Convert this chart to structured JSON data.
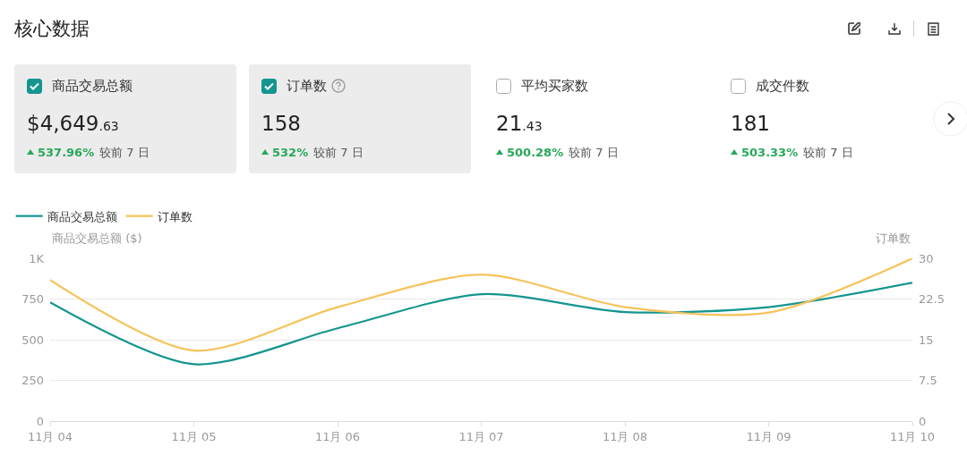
{
  "chart_data": {
    "type": "line",
    "title": "核心数据",
    "annotations": [
      "商品交易总额",
      "$4,649.63",
      "537.96%",
      "较前 7 日",
      "订单数",
      "158",
      "532%",
      "较前 7 日",
      "平均买家数",
      "21.43",
      "500.28%",
      "较前 7 日",
      "成交件数",
      "181",
      "503.33%",
      "较前 7 日"
    ],
    "categories": [
      "11月 04",
      "11月 05",
      "11月 06",
      "11月 07",
      "11月 08",
      "11月 09",
      "11月 10"
    ],
    "series": [
      {
        "name": "商品交易总额",
        "color": "#14958f",
        "values": [
          730,
          350,
          570,
          780,
          670,
          700,
          850
        ]
      },
      {
        "name": "订单数",
        "color": "#f6c35a",
        "axis": "y2",
        "values": [
          26,
          13,
          21,
          27,
          21,
          20,
          30
        ]
      }
    ],
    "ylabel": "商品交易总额 ($)",
    "y2label": "订单数",
    "ylim": [
      0,
      1000
    ],
    "yticks": [
      0,
      250,
      500,
      750,
      {
        "value": 1000,
        "label": "1K"
      }
    ],
    "y2lim": [
      0,
      30
    ],
    "y2ticks": [
      0,
      7.5,
      15,
      22.5,
      30
    ],
    "grid": "y",
    "legend": "top left"
  }
}
